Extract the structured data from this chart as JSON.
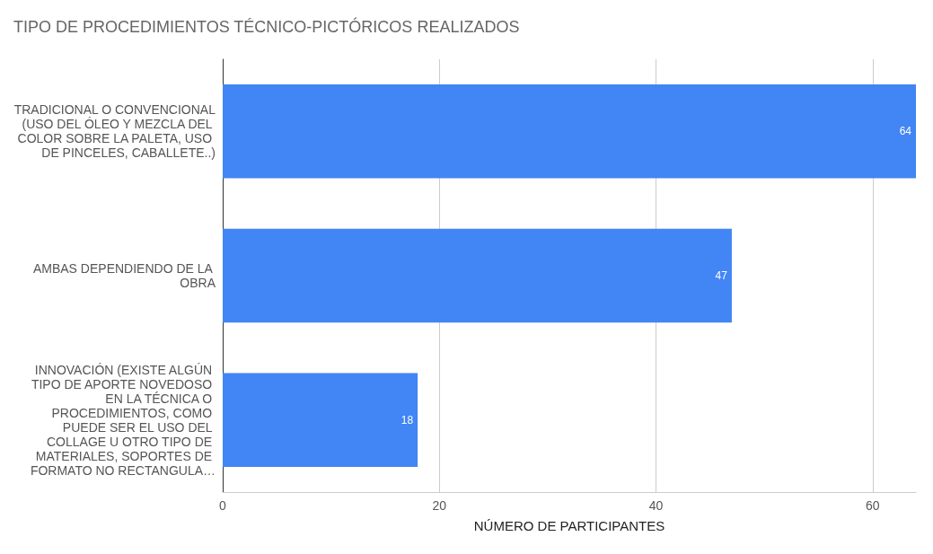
{
  "chart_data": {
    "type": "bar",
    "orientation": "horizontal",
    "title": "TIPO DE PROCEDIMIENTOS TÉCNICO-PICTÓRICOS REALIZADOS",
    "xlabel": "NÚMERO DE PARTICIPANTES",
    "categories": [
      "TRADICIONAL O CONVENCIONAL (USO DEL ÓLEO Y MEZCLA DEL COLOR SOBRE LA PALETA, USO DE PINCELES, CABALLETE..)",
      "AMBAS DEPENDIENDO DE LA OBRA",
      "INNOVACIÓN (EXISTE ALGÚN TIPO DE APORTE NOVEDOSO EN LA TÉCNICA O PROCEDIMIENTOS, COMO PUEDE SER EL USO DEL COLLAGE U OTRO TIPO DE MATERIALES, SOPORTES DE FORMATO NO RECTANGULA…"
    ],
    "values": [
      64,
      47,
      18
    ],
    "color": "#4285f4",
    "data_labels": true,
    "xlim": [
      0,
      64
    ],
    "xticks": [
      0,
      20,
      40,
      60
    ],
    "grid": "x"
  }
}
